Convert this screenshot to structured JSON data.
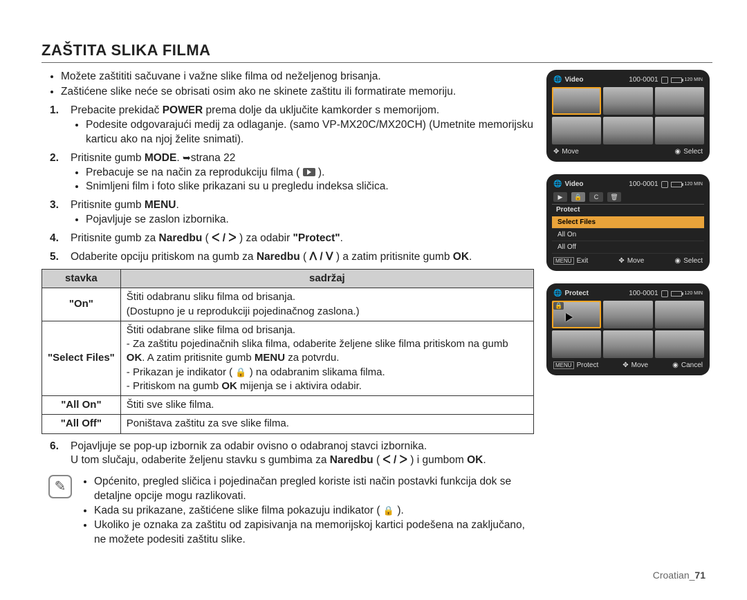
{
  "title": "ZAŠTITA SLIKA FILMA",
  "top_bullets": [
    "Možete zaštititi sačuvane i važne slike filma od neželjenog brisanja.",
    "Zaštićene slike neće se obrisati osim ako ne skinete zaštitu ili formatirate memoriju."
  ],
  "steps": {
    "s1": {
      "num": "1.",
      "text_a": "Prebacite prekidač ",
      "bold_a": "POWER",
      "text_b": " prema dolje da uključite kamkorder s memorijom.",
      "sub1": "Podesite odgovarajući medij za odlaganje. (samo VP-MX20C/MX20CH) (Umetnite memorijsku karticu ako na njoj želite snimati)."
    },
    "s2": {
      "num": "2.",
      "text_a": "Pritisnite gumb ",
      "bold_a": "MODE",
      "text_b": ". ",
      "page_ref": "strana 22",
      "sub1": "Prebacuje se na način za reprodukciju filma ( ",
      "sub1_end": " ).",
      "sub2": "Snimljeni film i foto slike prikazani su u pregledu indeksa sličica."
    },
    "s3": {
      "num": "3.",
      "text_a": "Pritisnite gumb ",
      "bold_a": "MENU",
      "text_b": ".",
      "sub1": "Pojavljuje se zaslon izbornika."
    },
    "s4": {
      "num": "4.",
      "text_a": "Pritisnite gumb za ",
      "bold_a": "Naredbu",
      "text_b": " ( ",
      "chev": "ᐸ / ᐳ",
      "text_c": " ) za odabir ",
      "bold_b": "\"Protect\"",
      "text_d": "."
    },
    "s5": {
      "num": "5.",
      "text_a": "Odaberite opciju pritiskom na gumb za ",
      "bold_a": "Naredbu",
      "text_b": " ( ",
      "chev": "ᐱ / ᐯ",
      "text_c": " ) a zatim pritisnite gumb ",
      "bold_b": "OK",
      "text_d": "."
    },
    "s6": {
      "num": "6.",
      "line1": "Pojavljuje se pop-up izbornik za odabir ovisno o odabranoj stavci izbornika.",
      "line2_a": "U tom slučaju, odaberite željenu stavku s gumbima za ",
      "bold_a": "Naredbu",
      "line2_b": " ( ",
      "chev": "ᐸ / ᐳ",
      "line2_c": " ) i gumbom ",
      "bold_b": "OK",
      "line2_d": "."
    }
  },
  "table": {
    "head_item": "stavka",
    "head_content": "sadržaj",
    "rows": {
      "r1": {
        "k": "\"On\"",
        "v": "Štiti odabranu sliku filma od brisanja.\n(Dostupno je u reprodukciji pojedinačnog zaslona.)"
      },
      "r2": {
        "k": "\"Select Files\"",
        "l1": "Štiti odabrane slike filma od brisanja.",
        "l2_a": "- Za zaštitu pojedinačnih slika filma, odaberite željene slike filma pritiskom na gumb ",
        "l2_b1": "OK",
        "l2_c": ". A zatim pritisnite gumb ",
        "l2_b2": "MENU",
        "l2_d": " za potvrdu.",
        "l3_a": "- Prikazan je indikator ( ",
        "l3_b": " ) na odabranim slikama filma.",
        "l4_a": "- Pritiskom na gumb ",
        "l4_bold": "OK",
        "l4_b": " mijenja se i aktivira odabir."
      },
      "r3": {
        "k": "\"All On\"",
        "v": "Štiti sve slike filma."
      },
      "r4": {
        "k": "\"All Off\"",
        "v": "Poništava zaštitu za sve slike filma."
      }
    }
  },
  "notes": {
    "n1": "Općenito, pregled sličica i pojedinačan pregled koriste isti način postavki funkcija dok se detaljne opcije mogu razlikovati.",
    "n2_a": "Kada su prikazane, zaštićene slike filma pokazuju indikator ( ",
    "n2_b": " ).",
    "n3": "Ukoliko je oznaka za zaštitu od zapisivanja na memorijskoj kartici podešena na zaključano, ne možete podesiti zaštitu slike."
  },
  "footer": {
    "lang": "Croatian",
    "sep": "_",
    "page": "71"
  },
  "screens": {
    "code": "100-0001",
    "min": "120 MIN",
    "video": "Video",
    "protect": "Protect",
    "move": "Move",
    "select": "Select",
    "cancel": "Cancel",
    "exit": "Exit",
    "menu": "MENU",
    "menu_head": "Protect",
    "m1": "Select Files",
    "m2": "All On",
    "m3": "All Off"
  }
}
